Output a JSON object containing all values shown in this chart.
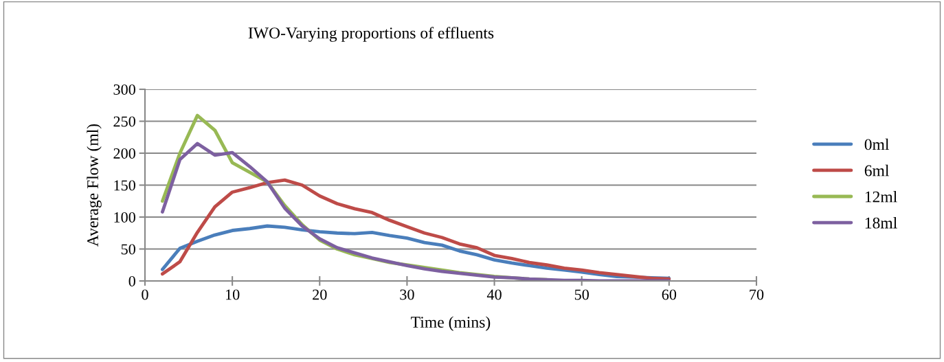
{
  "chart_data": {
    "type": "line",
    "title": "IWO-Varying proportions of effluents",
    "xlabel": "Time (mins)",
    "ylabel": "Average Flow (ml)",
    "x": [
      2,
      4,
      6,
      8,
      10,
      12,
      14,
      16,
      18,
      20,
      22,
      24,
      26,
      28,
      30,
      32,
      34,
      36,
      38,
      40,
      42,
      44,
      46,
      48,
      50,
      52,
      54,
      56,
      58,
      60
    ],
    "series": [
      {
        "name": "0ml",
        "color": "#4a7ebb",
        "values": [
          18,
          51,
          62,
          72,
          79,
          82,
          86,
          84,
          80,
          77,
          75,
          74,
          76,
          71,
          67,
          60,
          56,
          47,
          41,
          33,
          28,
          24,
          20,
          17,
          14,
          10,
          7,
          6,
          5,
          4
        ]
      },
      {
        "name": "6ml",
        "color": "#be4b48",
        "values": [
          11,
          30,
          76,
          116,
          139,
          146,
          154,
          158,
          150,
          133,
          121,
          113,
          107,
          95,
          85,
          75,
          68,
          58,
          52,
          40,
          35,
          29,
          25,
          20,
          17,
          13,
          10,
          7,
          4,
          3
        ]
      },
      {
        "name": "12ml",
        "color": "#98b954",
        "values": [
          125,
          200,
          259,
          236,
          185,
          170,
          155,
          118,
          88,
          64,
          50,
          41,
          35,
          29,
          25,
          21,
          17,
          13,
          10,
          7,
          5,
          3,
          2,
          null,
          null,
          null,
          null,
          null,
          null,
          null
        ]
      },
      {
        "name": "18ml",
        "color": "#7d60a0",
        "values": [
          108,
          190,
          215,
          197,
          201,
          179,
          155,
          114,
          86,
          66,
          52,
          44,
          36,
          30,
          24,
          19,
          15,
          12,
          9,
          6,
          5,
          3,
          2,
          1,
          1,
          0,
          0,
          0,
          0,
          0
        ]
      }
    ],
    "xlim": [
      0,
      70
    ],
    "xticks": [
      0,
      10,
      20,
      30,
      40,
      50,
      60,
      70
    ],
    "ylim": [
      0,
      300
    ],
    "yticks": [
      0,
      50,
      100,
      150,
      200,
      250,
      300
    ],
    "grid": "y",
    "legend": "right",
    "marker": "none",
    "line_style": "solid"
  }
}
